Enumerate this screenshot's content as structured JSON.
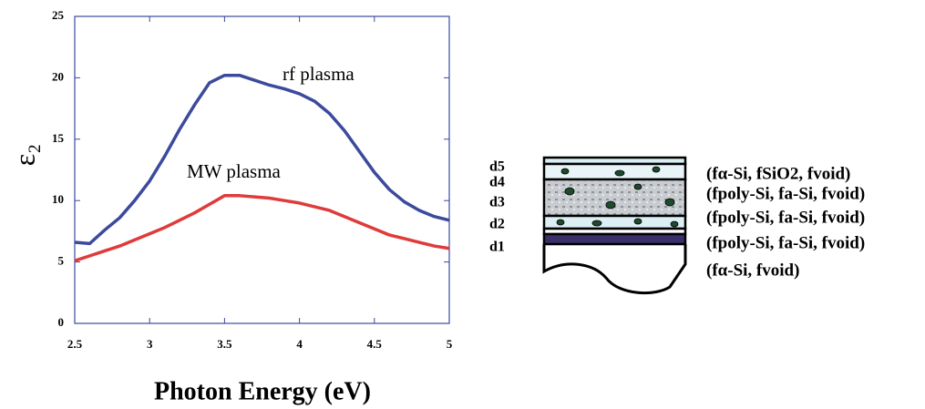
{
  "chart_data": {
    "type": "line",
    "x_label": "Photon Energy (eV)",
    "y_label": "ε₂",
    "xlim": [
      2.5,
      5
    ],
    "xticks": [
      2.5,
      3,
      3.5,
      4,
      4.5,
      5
    ],
    "ylim": [
      0,
      25
    ],
    "yticks": [
      0,
      5,
      10,
      15,
      20,
      25
    ],
    "x": [
      2.5,
      2.6,
      2.7,
      2.8,
      2.9,
      3.0,
      3.1,
      3.2,
      3.3,
      3.4,
      3.5,
      3.6,
      3.7,
      3.8,
      3.9,
      4.0,
      4.1,
      4.2,
      4.3,
      4.4,
      4.5,
      4.6,
      4.7,
      4.8,
      4.9,
      5.0
    ],
    "series": [
      {
        "name": "rf plasma",
        "color": "#3b4a9c",
        "values": [
          6.6,
          6.5,
          7.6,
          8.6,
          10.0,
          11.6,
          13.6,
          15.8,
          17.8,
          19.6,
          20.2,
          20.2,
          19.8,
          19.4,
          19.1,
          18.7,
          18.1,
          17.1,
          15.7,
          14.0,
          12.3,
          10.9,
          9.9,
          9.2,
          8.7,
          8.4
        ]
      },
      {
        "name": "MW plasma",
        "color": "#e03a3a",
        "values": [
          5.1,
          5.5,
          5.9,
          6.3,
          6.8,
          7.3,
          7.8,
          8.4,
          9.0,
          9.7,
          10.4,
          10.4,
          10.3,
          10.2,
          10.0,
          9.8,
          9.5,
          9.2,
          8.7,
          8.2,
          7.7,
          7.2,
          6.9,
          6.6,
          6.3,
          6.1
        ]
      }
    ]
  },
  "diagram": {
    "layers": [
      {
        "label": "d5",
        "composition": "(fα-Si, fSiO2, fvoid)"
      },
      {
        "label": "d4",
        "composition": "(fpoly-Si, fa-Si, fvoid)"
      },
      {
        "label": "d3",
        "composition": "(fpoly-Si, fa-Si, fvoid)"
      },
      {
        "label": "d2",
        "composition": "(fpoly-Si, fa-Si, fvoid)"
      },
      {
        "label": "d1",
        "composition": "(fα-Si, fvoid)"
      }
    ]
  }
}
